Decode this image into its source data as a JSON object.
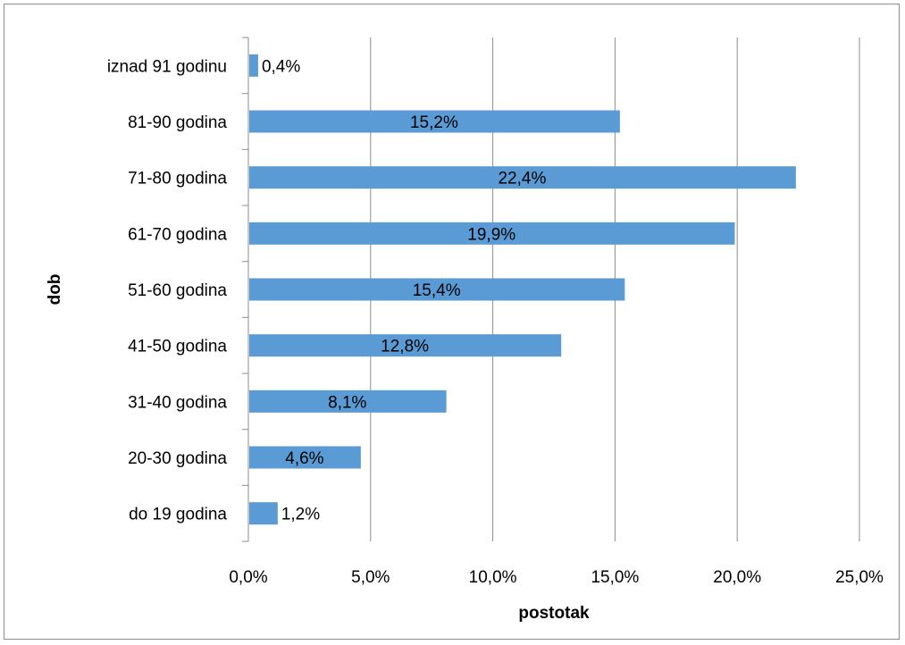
{
  "chart_data": {
    "type": "bar",
    "orientation": "horizontal",
    "title": "",
    "xlabel": "postotak",
    "ylabel": "dob",
    "categories": [
      "do 19 godina",
      "20-30 godina",
      "31-40 godina",
      "41-50 godina",
      "51-60 godina",
      "61-70 godina",
      "71-80 godina",
      "81-90 godina",
      "iznad 91 godinu"
    ],
    "values": [
      1.2,
      4.6,
      8.1,
      12.8,
      15.4,
      19.9,
      22.4,
      15.2,
      0.4
    ],
    "data_labels": [
      "1,2%",
      "4,6%",
      "8,1%",
      "12,8%",
      "15,4%",
      "19,9%",
      "22,4%",
      "15,2%",
      "0,4%"
    ],
    "xlim": [
      0,
      25
    ],
    "xticks": [
      0,
      5,
      10,
      15,
      20,
      25
    ],
    "xtick_labels": [
      "0,0%",
      "5,0%",
      "10,0%",
      "15,0%",
      "20,0%",
      "25,0%"
    ],
    "grid": "vertical",
    "legend": "none",
    "colors": {
      "bar": "#5b9bd5",
      "gridline": "#8c8c8c",
      "axis": "#8c8c8c"
    }
  }
}
